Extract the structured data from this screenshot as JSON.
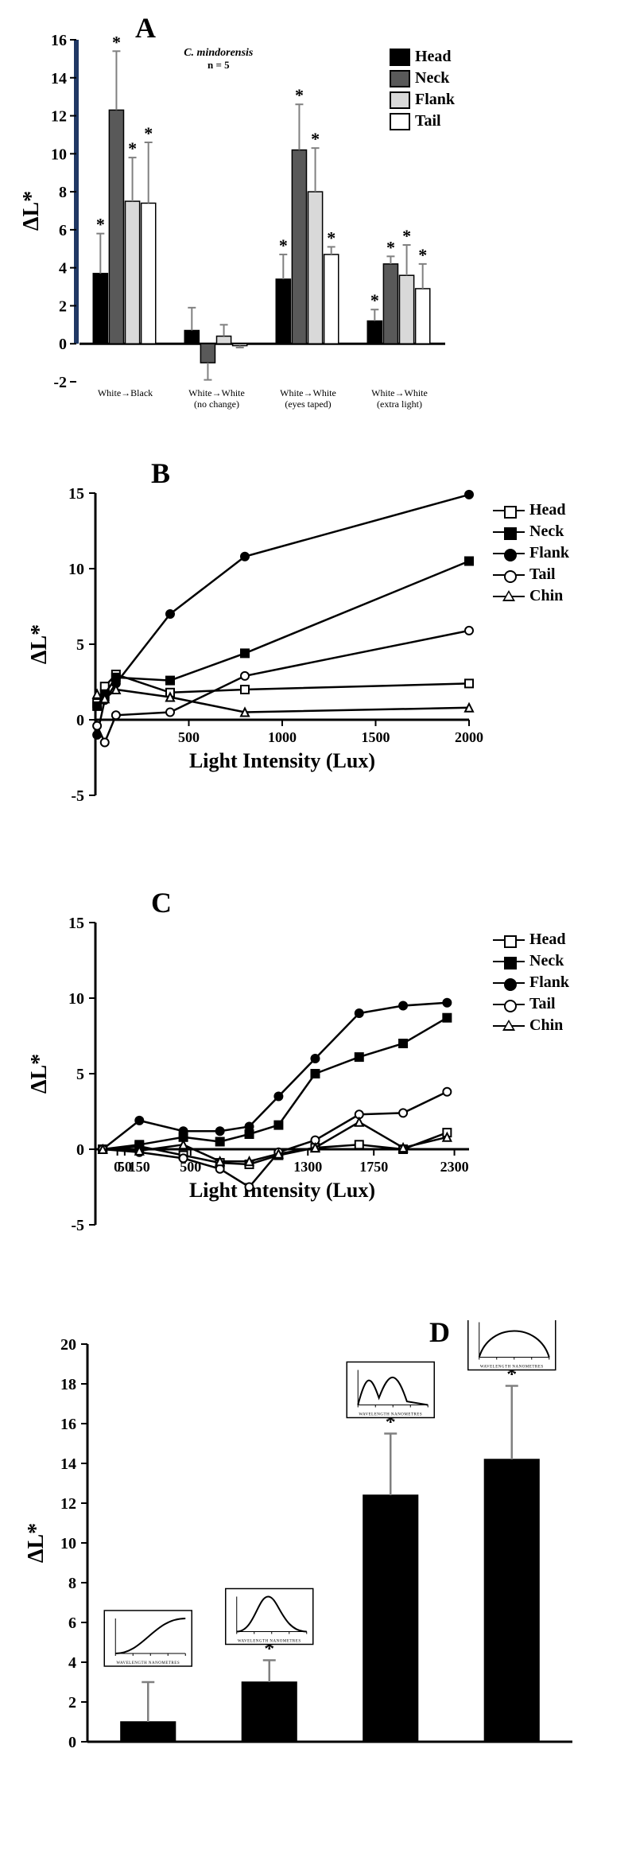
{
  "panelA": {
    "label": "A",
    "type": "bar",
    "subtitle_line1": "C. mindorensis",
    "subtitle_line2": "n = 5",
    "ylabel": "ΔL*",
    "ylim": [
      -2,
      16
    ],
    "ytick_step": 2,
    "categories": [
      {
        "line1": "White→Black",
        "line2": ""
      },
      {
        "line1": "White→White",
        "line2": "(no change)"
      },
      {
        "line1": "White→White",
        "line2": "(eyes taped)"
      },
      {
        "line1": "White→White",
        "line2": "(extra light)"
      }
    ],
    "series": [
      {
        "name": "Head",
        "color": "#000000"
      },
      {
        "name": "Neck",
        "color": "#595959"
      },
      {
        "name": "Flank",
        "color": "#d9d9d9"
      },
      {
        "name": "Tail",
        "color": "#ffffff"
      }
    ],
    "values": [
      [
        3.7,
        12.3,
        7.5,
        7.4
      ],
      [
        0.7,
        -1.0,
        0.4,
        -0.1
      ],
      [
        3.4,
        10.2,
        8.0,
        4.7
      ],
      [
        1.2,
        4.2,
        3.6,
        2.9
      ]
    ],
    "errors": [
      [
        2.1,
        3.1,
        2.3,
        3.2
      ],
      [
        1.2,
        0.9,
        0.6,
        0.1
      ],
      [
        1.3,
        2.4,
        2.3,
        0.4
      ],
      [
        0.6,
        0.4,
        1.6,
        1.3
      ]
    ],
    "sig": [
      [
        true,
        true,
        true,
        true
      ],
      [
        false,
        false,
        false,
        false
      ],
      [
        true,
        true,
        true,
        true
      ],
      [
        true,
        true,
        true,
        true
      ]
    ],
    "bar_border": "#000000",
    "error_color": "#808080",
    "y_axis_edge_color": "#203864"
  },
  "panelB": {
    "label": "B",
    "type": "line",
    "ylabel": "ΔL*",
    "xlabel": "Light Intensity (Lux)",
    "xlim": [
      0,
      2000
    ],
    "ylim": [
      -5,
      15
    ],
    "xtick_step": 500,
    "ytick_step": 5,
    "xpoints": [
      9,
      50,
      110,
      400,
      800,
      2000
    ],
    "series": [
      {
        "name": "Head",
        "marker": "square-open",
        "y": [
          1.1,
          2.2,
          3.0,
          1.8,
          2.0,
          2.4
        ]
      },
      {
        "name": "Neck",
        "marker": "square-filled",
        "y": [
          0.9,
          1.7,
          2.8,
          2.6,
          4.4,
          10.5
        ]
      },
      {
        "name": "Flank",
        "marker": "circle-filled",
        "y": [
          -1.0,
          1.3,
          2.4,
          7.0,
          10.8,
          14.9
        ]
      },
      {
        "name": "Tail",
        "marker": "circle-open",
        "y": [
          -0.4,
          -1.5,
          0.3,
          0.5,
          2.9,
          5.9
        ]
      },
      {
        "name": "Chin",
        "marker": "triangle-open",
        "y": [
          1.7,
          1.4,
          2.0,
          1.5,
          0.5,
          0.8
        ]
      }
    ],
    "line_color": "#000000",
    "marker_size": 10
  },
  "panelC": {
    "label": "C",
    "type": "line",
    "ylabel": "ΔL*",
    "xlabel": "Light Intensity (Lux)",
    "xlim": [
      -150,
      2400
    ],
    "ylim": [
      -5,
      15
    ],
    "xticks": [
      0,
      50,
      150,
      500,
      1300,
      1750,
      2300
    ],
    "ytick_step": 5,
    "xpoints": [
      -100,
      150,
      450,
      700,
      900,
      1100,
      1350,
      1650,
      1950,
      2250
    ],
    "series": [
      {
        "name": "Head",
        "marker": "square-open",
        "y": [
          0.0,
          0.2,
          -0.4,
          -0.9,
          -1.0,
          -0.4,
          0.1,
          0.3,
          0.0,
          1.1
        ]
      },
      {
        "name": "Neck",
        "marker": "square-filled",
        "y": [
          0.0,
          0.3,
          0.8,
          0.5,
          1.0,
          1.6,
          5.0,
          6.1,
          7.0,
          8.7
        ]
      },
      {
        "name": "Flank",
        "marker": "circle-filled",
        "y": [
          0.0,
          1.9,
          1.2,
          1.2,
          1.5,
          3.5,
          6.0,
          9.0,
          9.5,
          9.7
        ]
      },
      {
        "name": "Tail",
        "marker": "circle-open",
        "y": [
          0.0,
          -0.2,
          -0.6,
          -1.3,
          -2.5,
          -0.2,
          0.6,
          2.3,
          2.4,
          3.8
        ]
      },
      {
        "name": "Chin",
        "marker": "triangle-open",
        "y": [
          0.0,
          -0.1,
          0.3,
          -0.8,
          -0.8,
          -0.3,
          0.1,
          1.8,
          0.1,
          0.8
        ]
      }
    ],
    "line_color": "#000000",
    "marker_size": 10
  },
  "panelD": {
    "label": "D",
    "type": "bar",
    "ylabel": "ΔL*",
    "ylim": [
      0,
      20
    ],
    "ytick_step": 2,
    "categories_count": 4,
    "values": [
      1.0,
      3.0,
      12.4,
      14.2
    ],
    "errors": [
      2.0,
      1.1,
      3.1,
      3.7
    ],
    "sig": [
      false,
      true,
      true,
      true
    ],
    "bar_color": "#000000",
    "error_color": "#808080",
    "spectrum_label_small": "WAVELENGTH NANOMETRES"
  }
}
